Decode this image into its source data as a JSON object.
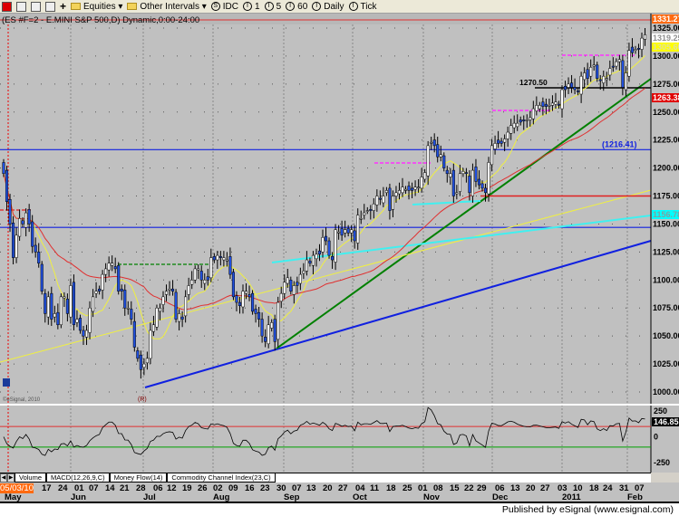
{
  "toolbar": {
    "items": [
      "Equities ▾",
      "Other Intervals ▾"
    ],
    "intervals": [
      {
        "icon": "S",
        "label": "IDC"
      },
      {
        "icon": "I",
        "label": "1"
      },
      {
        "icon": "I",
        "label": "5"
      },
      {
        "icon": "I",
        "label": "60"
      },
      {
        "icon": "I",
        "label": "Daily"
      },
      {
        "icon": "I",
        "label": "Tick"
      }
    ]
  },
  "chart_title": "(ES #F=2 - E.MINI S&P 500,D) Dynamic,0:00-24:00",
  "copyright": "©eSignal, 2010",
  "tabs": [
    "Volume",
    "MACD(12,26,9,C)",
    "Money Flow(14)",
    "Commodity Channel Index(23,C)"
  ],
  "footer": "Published by eSignal (www.esignal.com)",
  "colors": {
    "background": "#c0c0c0",
    "up_candle": "#ffffff",
    "down_candle": "#2050e0",
    "ma_fast": "#f0f040",
    "ma_slow": "#e03030"
  },
  "chart_data": {
    "type": "candlestick",
    "price_axis": {
      "range": [
        990,
        1340
      ],
      "ticks": [
        "1325.00",
        "1300.00",
        "1275.00",
        "1250.00",
        "1225.00",
        "1200.00",
        "1175.00",
        "1150.00",
        "1125.00",
        "1100.00",
        "1075.00",
        "1050.00",
        "1025.00",
        "1000.00"
      ]
    },
    "price_labels": [
      {
        "text": "1331.27",
        "value": 1331.27,
        "bg": "#ff6a10",
        "fg": "#ffffff"
      },
      {
        "text": "1319.25",
        "value": 1319.25,
        "bg": "#ffffff",
        "fg": "#909090"
      },
      {
        "text": "1305.60",
        "value": 1305.6,
        "bg": "#ffff00",
        "fg": "#e0e0a0"
      },
      {
        "text": "1263.38",
        "value": 1263.38,
        "bg": "#e00000",
        "fg": "#ffffff"
      },
      {
        "text": "1156.78",
        "value": 1156.78,
        "bg": "#00ffff",
        "fg": "#80a0a0"
      }
    ],
    "annotations": [
      {
        "text": "(1216.41)",
        "value": 1216.41
      },
      {
        "text": "1270.50",
        "value": 1270.5
      },
      {
        "text": "(R)",
        "value": 1000
      }
    ],
    "date_ticks": [
      "05/03/10",
      "17",
      "24",
      "01",
      "07",
      "14",
      "21",
      "28",
      "06",
      "12",
      "19",
      "26",
      "02",
      "09",
      "16",
      "23",
      "30",
      "07",
      "13",
      "20",
      "27",
      "04",
      "11",
      "18",
      "25",
      "01",
      "08",
      "15",
      "22",
      "29",
      "06",
      "13",
      "20",
      "27",
      "03",
      "10",
      "18",
      "24",
      "31",
      "07"
    ],
    "month_labels": [
      "May",
      "Jun",
      "Jul",
      "Aug",
      "Sep",
      "Oct",
      "Nov",
      "Dec",
      "2011",
      "Feb"
    ],
    "closes": [
      1195,
      1170,
      1150,
      1120,
      1140,
      1155,
      1150,
      1160,
      1150,
      1130,
      1125,
      1115,
      1090,
      1070,
      1085,
      1065,
      1070,
      1060,
      1085,
      1085,
      1070,
      1095,
      1060,
      1065,
      1055,
      1050,
      1055,
      1075,
      1085,
      1090,
      1090,
      1105,
      1110,
      1115,
      1115,
      1110,
      1090,
      1090,
      1075,
      1075,
      1065,
      1040,
      1030,
      1020,
      1025,
      1030,
      1055,
      1060,
      1075,
      1075,
      1085,
      1090,
      1092,
      1090,
      1065,
      1070,
      1065,
      1085,
      1095,
      1100,
      1110,
      1110,
      1100,
      1100,
      1100,
      1120,
      1118,
      1122,
      1120,
      1120,
      1118,
      1105,
      1085,
      1080,
      1077,
      1090,
      1090,
      1085,
      1072,
      1070,
      1065,
      1050,
      1045,
      1060,
      1062,
      1045,
      1080,
      1088,
      1098,
      1102,
      1090,
      1095,
      1095,
      1105,
      1108,
      1118,
      1115,
      1122,
      1123,
      1123,
      1138,
      1135,
      1122,
      1118,
      1145,
      1143,
      1140,
      1145,
      1142,
      1145,
      1135,
      1158,
      1155,
      1160,
      1162,
      1162,
      1168,
      1175,
      1172,
      1175,
      1180,
      1162,
      1175,
      1178,
      1180,
      1183,
      1181,
      1180,
      1180,
      1183,
      1183,
      1192,
      1196,
      1220,
      1223,
      1220,
      1210,
      1212,
      1200,
      1195,
      1195,
      1175,
      1178,
      1195,
      1197,
      1195,
      1178,
      1198,
      1188,
      1185,
      1182,
      1178,
      1205,
      1220,
      1222,
      1222,
      1222,
      1226,
      1232,
      1238,
      1240,
      1240,
      1241,
      1242,
      1243,
      1245,
      1253,
      1256,
      1256,
      1255,
      1255,
      1256,
      1258,
      1259,
      1256,
      1270,
      1270,
      1275,
      1272,
      1270,
      1268,
      1282,
      1285,
      1280,
      1290,
      1292,
      1280,
      1278,
      1282,
      1280,
      1289,
      1290,
      1295,
      1297,
      1272,
      1285,
      1305,
      1303,
      1306,
      1306,
      1316,
      1319
    ],
    "indicator": {
      "name": "Commodity Channel Index(23,C)",
      "ticks": [
        "250",
        "0",
        "-250"
      ],
      "last_value": "146.85",
      "levels": [
        100,
        -100
      ]
    }
  }
}
